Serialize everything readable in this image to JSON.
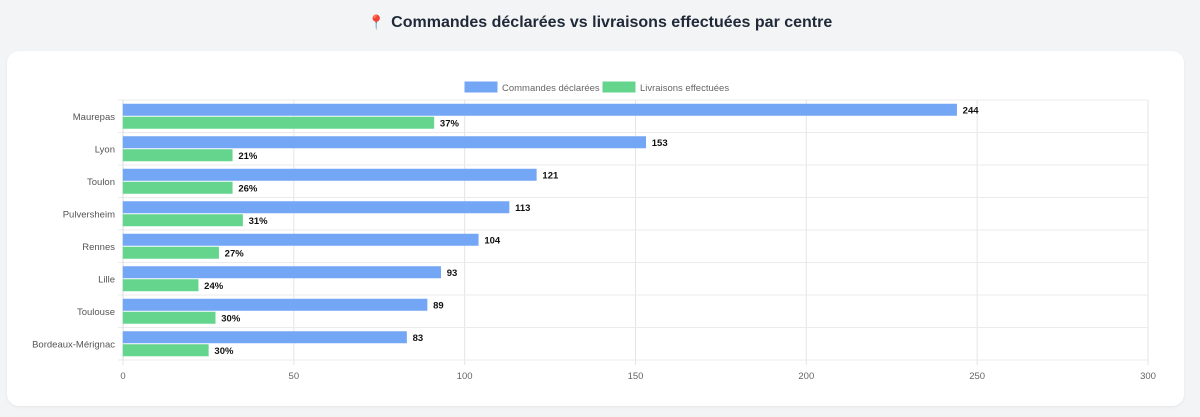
{
  "page": {
    "title_icon": "📍",
    "title": "Commandes déclarées vs livraisons effectuées par centre"
  },
  "chart_data": {
    "type": "bar",
    "orientation": "horizontal",
    "title": "Commandes déclarées vs livraisons effectuées par centre",
    "categories": [
      "Maurepas",
      "Lyon",
      "Toulon",
      "Pulversheim",
      "Rennes",
      "Lille",
      "Toulouse",
      "Bordeaux-Mérignac"
    ],
    "series": [
      {
        "name": "Commandes déclarées",
        "color": "#74a6f6",
        "values": [
          244,
          153,
          121,
          113,
          104,
          93,
          89,
          83
        ],
        "data_labels": [
          "244",
          "153",
          "121",
          "113",
          "104",
          "93",
          "89",
          "83"
        ]
      },
      {
        "name": "Livraisons effectuées",
        "color": "#65d58d",
        "values": [
          91,
          32,
          32,
          35,
          28,
          22,
          27,
          25
        ],
        "data_labels": [
          "37%",
          "21%",
          "26%",
          "31%",
          "27%",
          "24%",
          "30%",
          "30%"
        ]
      }
    ],
    "xlim": [
      0,
      300
    ],
    "xticks": [
      0,
      50,
      100,
      150,
      200,
      250,
      300
    ],
    "xlabel": "",
    "ylabel": "",
    "grid": true,
    "legend_position": "top-center"
  }
}
